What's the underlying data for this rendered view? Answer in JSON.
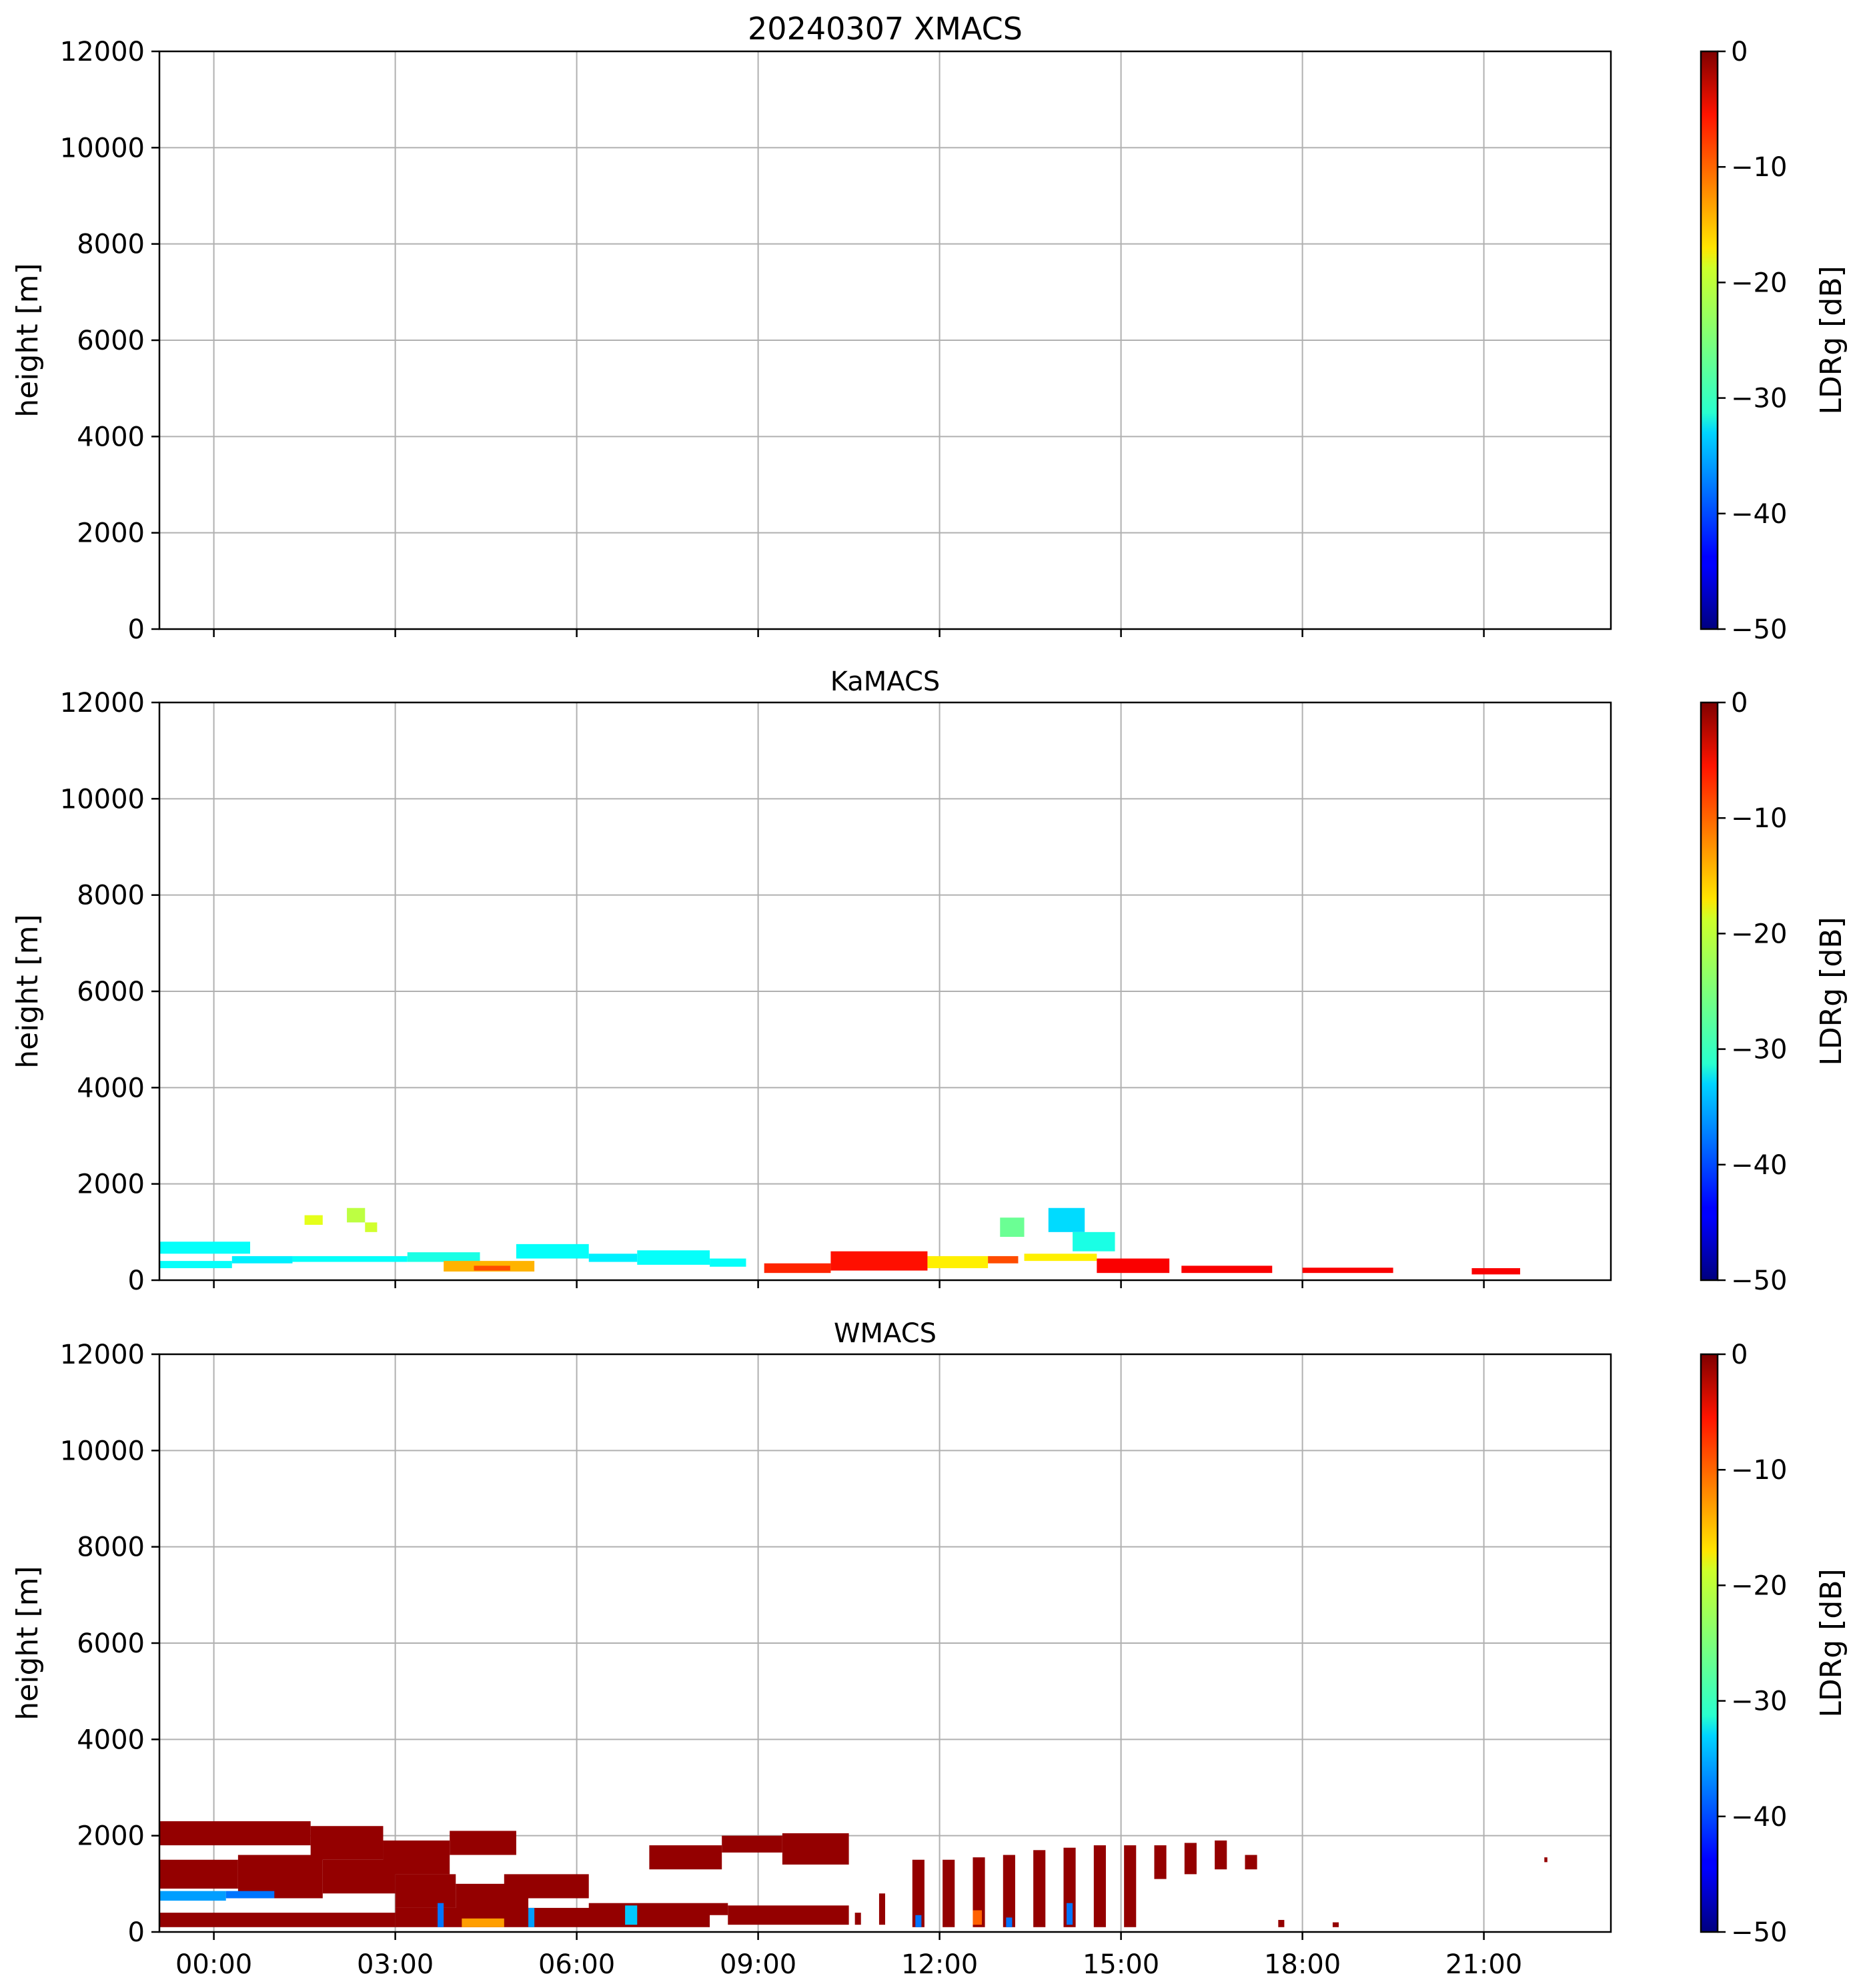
{
  "chart_data": [
    {
      "type": "heatmap",
      "title": "20240307 XMACS",
      "ylabel": "height [m]",
      "xlabel": "",
      "ylim": [
        0,
        12000
      ],
      "y_ticks": [
        0,
        2000,
        4000,
        6000,
        8000,
        10000,
        12000
      ],
      "xlim_hours": [
        -0.9,
        23.1
      ],
      "x_ticks": [
        "00:00",
        "03:00",
        "06:00",
        "09:00",
        "12:00",
        "15:00",
        "18:00",
        "21:00"
      ],
      "x_tick_hours": [
        0,
        3,
        6,
        9,
        12,
        15,
        18,
        21
      ],
      "show_x_tick_labels": false,
      "grid": true,
      "colorbar": {
        "label": "LDRg [dB]",
        "range": [
          -50,
          0
        ],
        "ticks": [
          0,
          -10,
          -20,
          -30,
          -40,
          -50
        ],
        "tick_labels": [
          "0",
          "−10",
          "−20",
          "−30",
          "−40",
          "−50"
        ],
        "colormap": "jet"
      },
      "patches": []
    },
    {
      "type": "heatmap",
      "title": "KaMACS",
      "ylabel": "height [m]",
      "xlabel": "",
      "ylim": [
        0,
        12000
      ],
      "y_ticks": [
        0,
        2000,
        4000,
        6000,
        8000,
        10000,
        12000
      ],
      "xlim_hours": [
        -0.9,
        23.1
      ],
      "x_ticks": [
        "00:00",
        "03:00",
        "06:00",
        "09:00",
        "12:00",
        "15:00",
        "18:00",
        "21:00"
      ],
      "x_tick_hours": [
        0,
        3,
        6,
        9,
        12,
        15,
        18,
        21
      ],
      "show_x_tick_labels": false,
      "grid": true,
      "colorbar": {
        "label": "LDRg [dB]",
        "range": [
          -50,
          0
        ],
        "ticks": [
          0,
          -10,
          -20,
          -30,
          -40,
          -50
        ],
        "tick_labels": [
          "0",
          "−10",
          "−20",
          "−30",
          "−40",
          "−50"
        ],
        "colormap": "jet"
      },
      "patches": [
        {
          "t0": -0.9,
          "t1": 0.6,
          "h0": 550,
          "h1": 800,
          "ldr": -31
        },
        {
          "t0": -0.9,
          "t1": 0.3,
          "h0": 250,
          "h1": 400,
          "ldr": -31
        },
        {
          "t0": 0.3,
          "t1": 1.3,
          "h0": 350,
          "h1": 500,
          "ldr": -32
        },
        {
          "t0": 1.3,
          "t1": 3.2,
          "h0": 380,
          "h1": 500,
          "ldr": -31
        },
        {
          "t0": 1.5,
          "t1": 1.8,
          "h0": 1150,
          "h1": 1350,
          "ldr": -20
        },
        {
          "t0": 2.2,
          "t1": 2.5,
          "h0": 1200,
          "h1": 1500,
          "ldr": -22
        },
        {
          "t0": 2.5,
          "t1": 2.7,
          "h0": 1000,
          "h1": 1200,
          "ldr": -21
        },
        {
          "t0": 3.2,
          "t1": 4.4,
          "h0": 380,
          "h1": 580,
          "ldr": -30
        },
        {
          "t0": 3.8,
          "t1": 5.3,
          "h0": 180,
          "h1": 400,
          "ldr": -15
        },
        {
          "t0": 4.3,
          "t1": 4.9,
          "h0": 200,
          "h1": 300,
          "ldr": -10
        },
        {
          "t0": 5.0,
          "t1": 6.2,
          "h0": 450,
          "h1": 750,
          "ldr": -31
        },
        {
          "t0": 6.2,
          "t1": 7.0,
          "h0": 380,
          "h1": 550,
          "ldr": -32
        },
        {
          "t0": 7.0,
          "t1": 8.2,
          "h0": 320,
          "h1": 620,
          "ldr": -31
        },
        {
          "t0": 8.2,
          "t1": 8.8,
          "h0": 280,
          "h1": 450,
          "ldr": -31
        },
        {
          "t0": 9.1,
          "t1": 10.2,
          "h0": 150,
          "h1": 350,
          "ldr": -8
        },
        {
          "t0": 10.2,
          "t1": 11.8,
          "h0": 200,
          "h1": 600,
          "ldr": -7
        },
        {
          "t0": 11.8,
          "t1": 12.8,
          "h0": 250,
          "h1": 500,
          "ldr": -18
        },
        {
          "t0": 12.8,
          "t1": 13.3,
          "h0": 350,
          "h1": 500,
          "ldr": -10
        },
        {
          "t0": 13.0,
          "t1": 13.4,
          "h0": 900,
          "h1": 1300,
          "ldr": -26
        },
        {
          "t0": 13.4,
          "t1": 14.6,
          "h0": 400,
          "h1": 550,
          "ldr": -18
        },
        {
          "t0": 13.8,
          "t1": 14.4,
          "h0": 1000,
          "h1": 1500,
          "ldr": -33
        },
        {
          "t0": 14.2,
          "t1": 14.9,
          "h0": 600,
          "h1": 1000,
          "ldr": -30
        },
        {
          "t0": 14.6,
          "t1": 15.8,
          "h0": 150,
          "h1": 450,
          "ldr": -6
        },
        {
          "t0": 16.0,
          "t1": 17.5,
          "h0": 150,
          "h1": 300,
          "ldr": -6
        },
        {
          "t0": 18.0,
          "t1": 19.5,
          "h0": 150,
          "h1": 260,
          "ldr": -6
        },
        {
          "t0": 20.8,
          "t1": 21.6,
          "h0": 120,
          "h1": 250,
          "ldr": -6
        }
      ]
    },
    {
      "type": "heatmap",
      "title": "WMACS",
      "ylabel": "height [m]",
      "xlabel": "",
      "ylim": [
        0,
        12000
      ],
      "y_ticks": [
        0,
        2000,
        4000,
        6000,
        8000,
        10000,
        12000
      ],
      "xlim_hours": [
        -0.9,
        23.1
      ],
      "x_ticks": [
        "00:00",
        "03:00",
        "06:00",
        "09:00",
        "12:00",
        "15:00",
        "18:00",
        "21:00"
      ],
      "x_tick_hours": [
        0,
        3,
        6,
        9,
        12,
        15,
        18,
        21
      ],
      "show_x_tick_labels": true,
      "grid": true,
      "colorbar": {
        "label": "LDRg [dB]",
        "range": [
          -50,
          0
        ],
        "ticks": [
          0,
          -10,
          -20,
          -30,
          -40,
          -50
        ],
        "tick_labels": [
          "0",
          "−10",
          "−20",
          "−30",
          "−40",
          "−50"
        ],
        "colormap": "jet"
      },
      "patches": [
        {
          "t0": -0.9,
          "t1": 1.6,
          "h0": 1800,
          "h1": 2300,
          "ldr": -1
        },
        {
          "t0": 1.6,
          "t1": 2.8,
          "h0": 1500,
          "h1": 2200,
          "ldr": -1
        },
        {
          "t0": -0.9,
          "t1": 0.4,
          "h0": 900,
          "h1": 1500,
          "ldr": -1
        },
        {
          "t0": 0.4,
          "t1": 1.8,
          "h0": 700,
          "h1": 1600,
          "ldr": -1
        },
        {
          "t0": 1.8,
          "t1": 3.0,
          "h0": 800,
          "h1": 1500,
          "ldr": -1
        },
        {
          "t0": 2.8,
          "t1": 3.9,
          "h0": 1200,
          "h1": 1900,
          "ldr": -1
        },
        {
          "t0": 3.0,
          "t1": 4.0,
          "h0": 500,
          "h1": 1200,
          "ldr": -1
        },
        {
          "t0": 3.9,
          "t1": 5.0,
          "h0": 1600,
          "h1": 2100,
          "ldr": -1
        },
        {
          "t0": 4.0,
          "t1": 5.2,
          "h0": 400,
          "h1": 1000,
          "ldr": -1
        },
        {
          "t0": 4.8,
          "t1": 6.2,
          "h0": 700,
          "h1": 1200,
          "ldr": -1
        },
        {
          "t0": -0.9,
          "t1": 3.0,
          "h0": 100,
          "h1": 400,
          "ldr": -1
        },
        {
          "t0": 3.0,
          "t1": 8.2,
          "h0": 100,
          "h1": 500,
          "ldr": -1
        },
        {
          "t0": 6.2,
          "t1": 8.5,
          "h0": 350,
          "h1": 600,
          "ldr": -1
        },
        {
          "t0": 8.5,
          "t1": 10.5,
          "h0": 150,
          "h1": 550,
          "ldr": -1
        },
        {
          "t0": 7.2,
          "t1": 8.4,
          "h0": 1300,
          "h1": 1800,
          "ldr": -1
        },
        {
          "t0": 8.4,
          "t1": 9.4,
          "h0": 1650,
          "h1": 2000,
          "ldr": -1
        },
        {
          "t0": 9.4,
          "t1": 10.5,
          "h0": 1400,
          "h1": 2050,
          "ldr": -1
        },
        {
          "t0": -0.9,
          "t1": 0.2,
          "h0": 650,
          "h1": 850,
          "ldr": -36
        },
        {
          "t0": 0.2,
          "t1": 1.0,
          "h0": 700,
          "h1": 850,
          "ldr": -38
        },
        {
          "t0": 3.7,
          "t1": 3.8,
          "h0": 100,
          "h1": 600,
          "ldr": -38
        },
        {
          "t0": 4.1,
          "t1": 4.8,
          "h0": 100,
          "h1": 280,
          "ldr": -14
        },
        {
          "t0": 5.2,
          "t1": 5.3,
          "h0": 100,
          "h1": 500,
          "ldr": -36
        },
        {
          "t0": 6.8,
          "t1": 7.0,
          "h0": 150,
          "h1": 550,
          "ldr": -34
        },
        {
          "t0": 10.6,
          "t1": 10.7,
          "h0": 150,
          "h1": 400,
          "ldr": -1
        },
        {
          "t0": 11.0,
          "t1": 11.1,
          "h0": 150,
          "h1": 800,
          "ldr": -1
        },
        {
          "t0": 11.55,
          "t1": 11.75,
          "h0": 100,
          "h1": 1500,
          "ldr": -1
        },
        {
          "t0": 12.05,
          "t1": 12.25,
          "h0": 100,
          "h1": 1500,
          "ldr": -1
        },
        {
          "t0": 12.55,
          "t1": 12.75,
          "h0": 100,
          "h1": 1550,
          "ldr": -1
        },
        {
          "t0": 13.05,
          "t1": 13.25,
          "h0": 100,
          "h1": 1600,
          "ldr": -1
        },
        {
          "t0": 13.55,
          "t1": 13.75,
          "h0": 100,
          "h1": 1700,
          "ldr": -1
        },
        {
          "t0": 14.05,
          "t1": 14.25,
          "h0": 100,
          "h1": 1750,
          "ldr": -1
        },
        {
          "t0": 14.55,
          "t1": 14.75,
          "h0": 100,
          "h1": 1800,
          "ldr": -1
        },
        {
          "t0": 15.05,
          "t1": 15.25,
          "h0": 100,
          "h1": 1800,
          "ldr": -1
        },
        {
          "t0": 15.55,
          "t1": 15.75,
          "h0": 1100,
          "h1": 1800,
          "ldr": -1
        },
        {
          "t0": 16.05,
          "t1": 16.25,
          "h0": 1200,
          "h1": 1850,
          "ldr": -1
        },
        {
          "t0": 16.55,
          "t1": 16.75,
          "h0": 1300,
          "h1": 1900,
          "ldr": -1
        },
        {
          "t0": 17.05,
          "t1": 17.25,
          "h0": 1300,
          "h1": 1600,
          "ldr": -1
        },
        {
          "t0": 12.55,
          "t1": 12.7,
          "h0": 150,
          "h1": 450,
          "ldr": -11
        },
        {
          "t0": 14.1,
          "t1": 14.2,
          "h0": 150,
          "h1": 600,
          "ldr": -38
        },
        {
          "t0": 11.6,
          "t1": 11.7,
          "h0": 100,
          "h1": 350,
          "ldr": -38
        },
        {
          "t0": 13.1,
          "t1": 13.2,
          "h0": 100,
          "h1": 300,
          "ldr": -38
        },
        {
          "t0": 17.6,
          "t1": 17.7,
          "h0": 100,
          "h1": 250,
          "ldr": -1
        },
        {
          "t0": 18.5,
          "t1": 18.6,
          "h0": 100,
          "h1": 200,
          "ldr": -1
        },
        {
          "t0": 22.0,
          "t1": 22.05,
          "h0": 1450,
          "h1": 1550,
          "ldr": -1
        }
      ]
    }
  ]
}
